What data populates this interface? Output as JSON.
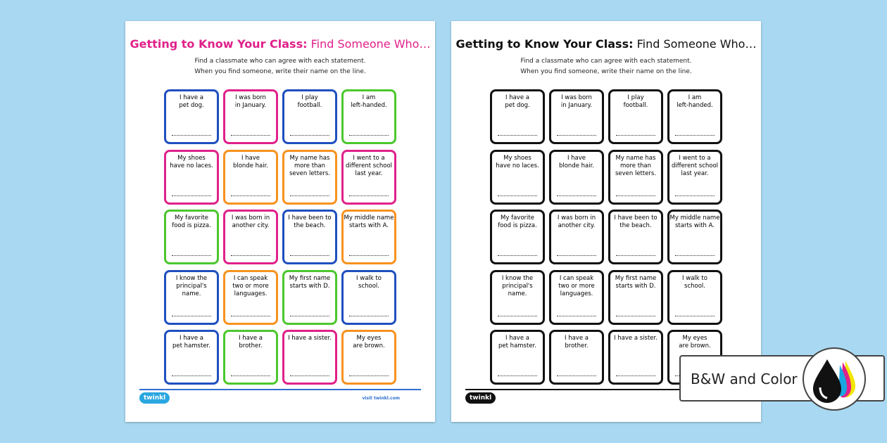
{
  "worksheet": {
    "title_bold": "Getting to Know Your Class:",
    "title_rest": "Find Someone Who…",
    "instructions": [
      "Find a classmate who can agree with each statement.",
      "When you find someone, write their name on the line."
    ],
    "cards": [
      {
        "lines": [
          "I have a",
          "pet dog."
        ],
        "color": "#1f4fbf"
      },
      {
        "lines": [
          "I was born",
          "in January."
        ],
        "color": "#e0218a"
      },
      {
        "lines": [
          "I play",
          "football."
        ],
        "color": "#1f4fbf"
      },
      {
        "lines": [
          "I am",
          "left-handed."
        ],
        "color": "#4cc72e"
      },
      {
        "lines": [
          "My shoes",
          "have no laces."
        ],
        "color": "#e0218a"
      },
      {
        "lines": [
          "I have",
          "blonde hair."
        ],
        "color": "#f7921e"
      },
      {
        "lines": [
          "My name has",
          "more than",
          "seven letters."
        ],
        "color": "#f7921e"
      },
      {
        "lines": [
          "I went to a",
          "different school",
          "last year."
        ],
        "color": "#e0218a"
      },
      {
        "lines": [
          "My favorite",
          "food is pizza."
        ],
        "color": "#4cc72e"
      },
      {
        "lines": [
          "I was born in",
          "another city."
        ],
        "color": "#e0218a"
      },
      {
        "lines": [
          "I have been to",
          "the beach."
        ],
        "color": "#1f4fbf"
      },
      {
        "lines": [
          "My middle name",
          "starts with A."
        ],
        "color": "#f7921e"
      },
      {
        "lines": [
          "I know the",
          "principal's",
          "name."
        ],
        "color": "#1f4fbf"
      },
      {
        "lines": [
          "I can speak",
          "two or more",
          "languages."
        ],
        "color": "#f7921e"
      },
      {
        "lines": [
          "My first name",
          "starts with D."
        ],
        "color": "#4cc72e"
      },
      {
        "lines": [
          "I walk to",
          "school."
        ],
        "color": "#1f4fbf"
      },
      {
        "lines": [
          "I have a",
          "pet hamster."
        ],
        "color": "#1f4fbf"
      },
      {
        "lines": [
          "I have a",
          "brother."
        ],
        "color": "#4cc72e"
      },
      {
        "lines": [
          "I have a sister."
        ],
        "color": "#e0218a"
      },
      {
        "lines": [
          "My eyes",
          "are brown."
        ],
        "color": "#f7921e"
      }
    ],
    "logo": "twinkl",
    "footer_url": "visit twinkl.com"
  },
  "badge": {
    "label": "B&W and Color"
  }
}
